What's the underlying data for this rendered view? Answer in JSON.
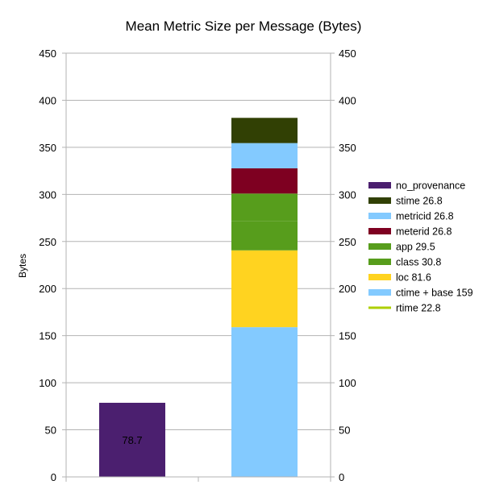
{
  "chart_data": {
    "type": "bar",
    "stacked": true,
    "title": "Mean Metric Size per Message (Bytes)",
    "xlabel": "",
    "ylabel": "Bytes",
    "ylim": [
      0,
      450
    ],
    "yticks": [
      0,
      50,
      100,
      150,
      200,
      250,
      300,
      350,
      400,
      450
    ],
    "grid": true,
    "legend_position": "right",
    "categories": [
      "",
      ""
    ],
    "series": [
      {
        "name": "no_provenance",
        "color": "#4b1f6f",
        "values": [
          78.7,
          0
        ]
      },
      {
        "name": "ctime + base 159",
        "color": "#83caff",
        "values": [
          0,
          159
        ]
      },
      {
        "name": "loc 81.6",
        "color": "#ffd320",
        "values": [
          0,
          81.6
        ]
      },
      {
        "name": "class 30.8",
        "color": "#579d1c",
        "values": [
          0,
          30.8
        ]
      },
      {
        "name": "app 29.5",
        "color": "#579d1c",
        "values": [
          0,
          29.5
        ]
      },
      {
        "name": "meterid 26.8",
        "color": "#7e0021",
        "values": [
          0,
          26.8
        ]
      },
      {
        "name": "metricid 26.8",
        "color": "#83caff",
        "values": [
          0,
          26.8
        ]
      },
      {
        "name": "stime 26.8",
        "color": "#314004",
        "values": [
          0,
          26.8
        ]
      },
      {
        "name": "rtime 22.8",
        "color": "#aecf00",
        "values": [
          0,
          0
        ]
      }
    ],
    "legend_order": [
      "no_provenance",
      "stime 26.8",
      "metricid 26.8",
      "meterid 26.8",
      "app 29.5",
      "class 30.8",
      "loc 81.6",
      "ctime + base 159",
      "rtime 22.8"
    ],
    "legend_line_only": [
      "rtime 22.8"
    ],
    "data_labels": [
      {
        "series": "no_provenance",
        "category_index": 0,
        "text": "78.7"
      }
    ]
  }
}
